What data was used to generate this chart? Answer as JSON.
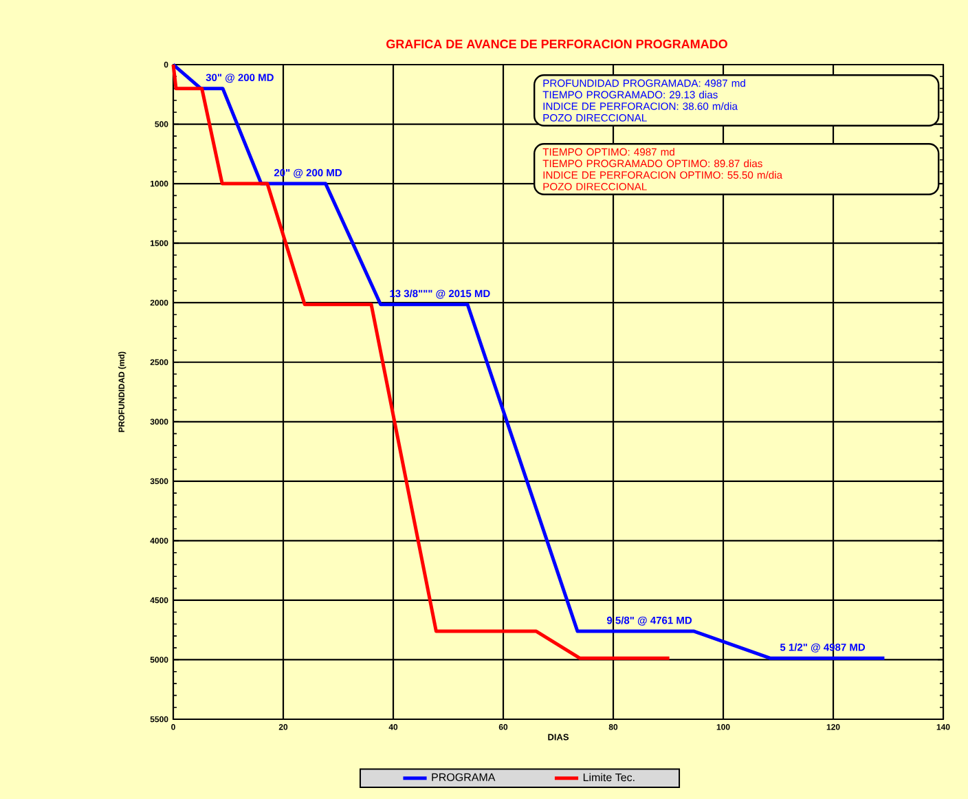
{
  "chart_data": {
    "type": "line",
    "title": "GRAFICA DE AVANCE DE PERFORACION PROGRAMADO",
    "xlabel": "DIAS",
    "ylabel": "PROFUNDIDAD (md)",
    "series": [
      {
        "name": "PROGRAMA",
        "color": "#0000ff",
        "x": [
          0,
          5,
          9,
          16,
          27.7,
          37.7,
          53.5,
          73.5,
          94.7,
          108.5,
          129.3
        ],
        "values": [
          0,
          200,
          200,
          1000,
          1000,
          2015,
          2015,
          4761,
          4761,
          4987,
          4987
        ]
      },
      {
        "name": "Limite Tec.",
        "color": "#ff0000",
        "x": [
          0,
          0.5,
          5.2,
          8.9,
          17.1,
          23.9,
          36,
          47.8,
          66,
          73.9,
          90.2
        ],
        "values": [
          0,
          200,
          200,
          1000,
          1000,
          2015,
          2015,
          4761,
          4761,
          4987,
          4987
        ]
      }
    ],
    "xlim": [
      0,
      140
    ],
    "xticks": [
      0,
      20,
      40,
      60,
      80,
      100,
      120,
      140
    ],
    "ylim": [
      5500,
      0
    ],
    "yticks": [
      0,
      500,
      1000,
      1500,
      2000,
      2500,
      3000,
      3500,
      4000,
      4500,
      5000,
      5500
    ],
    "grid": true,
    "legend": "bottom",
    "marker": "none",
    "line_style": "solid",
    "annotations": [
      {
        "text": "30\" @ 200 MD",
        "x": 5.6,
        "y": 200
      },
      {
        "text": "20\" @ 200 MD",
        "x": 18,
        "y": 1000
      },
      {
        "text": "13 3/8\"\"\" @ 2015 MD",
        "x": 39,
        "y": 2015
      },
      {
        "text": "9 5/8\" @ 4761 MD",
        "x": 78.5,
        "y": 4761
      },
      {
        "text": "5 1/2\" @ 4987 MD",
        "x": 110,
        "y": 4987
      },
      "PROFUNDIDAD PROGRAMADA: 4987 md",
      "TIEMPO PROGRAMADO: 29.13 dias",
      "INDICE DE PERFORACION:  38.60 m/dia",
      "POZO DIRECCIONAL",
      "TIEMPO OPTIMO: 4987 md",
      "TIEMPO PROGRAMADO OPTIMO: 89.87   dias",
      "INDICE DE PERFORACION  OPTIMO: 55.50  m/dia",
      "POZO DIRECCIONAL"
    ]
  }
}
